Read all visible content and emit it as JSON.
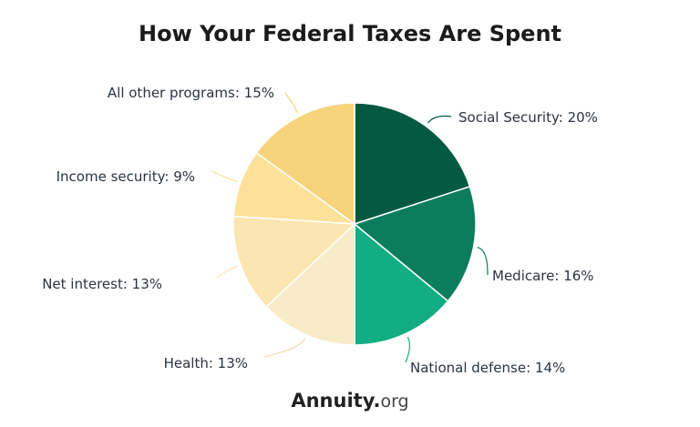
{
  "chart_data": {
    "type": "pie",
    "title": "How Your Federal Taxes Are Spent",
    "slices": [
      {
        "label": "Social Security: 20%",
        "value": 20,
        "color": "#045a40"
      },
      {
        "label": "Medicare: 16%",
        "value": 16,
        "color": "#0b7d5d"
      },
      {
        "label": "National defense: 14%",
        "value": 14,
        "color": "#12ad83"
      },
      {
        "label": "Health: 13%",
        "value": 13,
        "color": "#f8ecc8"
      },
      {
        "label": "Net interest: 13%",
        "value": 13,
        "color": "#fbe5b0"
      },
      {
        "label": "Income security: 9%",
        "value": 9,
        "color": "#fce19a"
      },
      {
        "label": "All other programs: 15%",
        "value": 15,
        "color": "#f7d47c"
      }
    ],
    "start": "top",
    "direction": "clockwise"
  },
  "logo": {
    "main": "Annuity",
    "dot_color": "#7ed321",
    "suffix": "org"
  }
}
